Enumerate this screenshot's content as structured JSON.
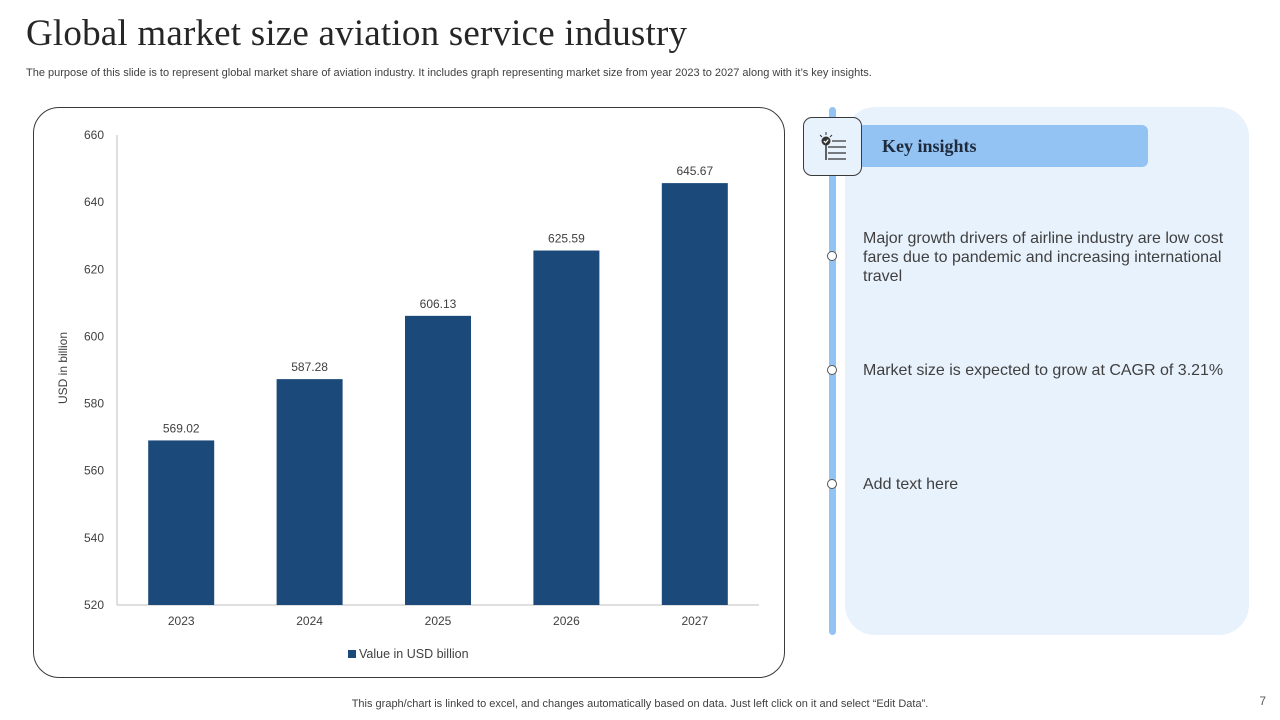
{
  "slide": {
    "title": "Global market size aviation service industry",
    "subtitle": "The purpose of this slide is to represent global market share of aviation industry. It includes graph representing market size from year 2023 to 2027 along with it’s key insights.",
    "footer_note": "This graph/chart is linked to excel, and changes automatically based on data. Just left click on it and select “Edit Data”.",
    "page_number": "7"
  },
  "colors": {
    "bar": "#1b4a7a",
    "panel_background": "#e8f2fc",
    "accent_light_blue": "#93c3f3",
    "text": "#404040"
  },
  "insights": {
    "header": "Key insights",
    "header_icon": "checklist-lightbulb-icon",
    "items": [
      {
        "text": "Major growth drivers of airline industry are low cost fares due to pandemic and increasing international travel"
      },
      {
        "text": "Market size is expected to grow at CAGR of 3.21%"
      },
      {
        "text": "Add text here"
      }
    ]
  },
  "chart_data": {
    "type": "bar",
    "title": "",
    "xlabel": "",
    "ylabel": "USD in billion",
    "categories": [
      "2023",
      "2024",
      "2025",
      "2026",
      "2027"
    ],
    "series": [
      {
        "name": "Value in USD billion",
        "values": [
          569.02,
          587.28,
          606.13,
          625.59,
          645.67
        ]
      }
    ],
    "data_labels": [
      "569.02",
      "587.28",
      "606.13",
      "625.59",
      "645.67"
    ],
    "ylim": [
      520,
      660
    ],
    "yticks": [
      520,
      540,
      560,
      580,
      600,
      620,
      640,
      660
    ],
    "grid": false,
    "legend": {
      "position": "bottom",
      "entries": [
        "Value in USD billion"
      ]
    }
  }
}
